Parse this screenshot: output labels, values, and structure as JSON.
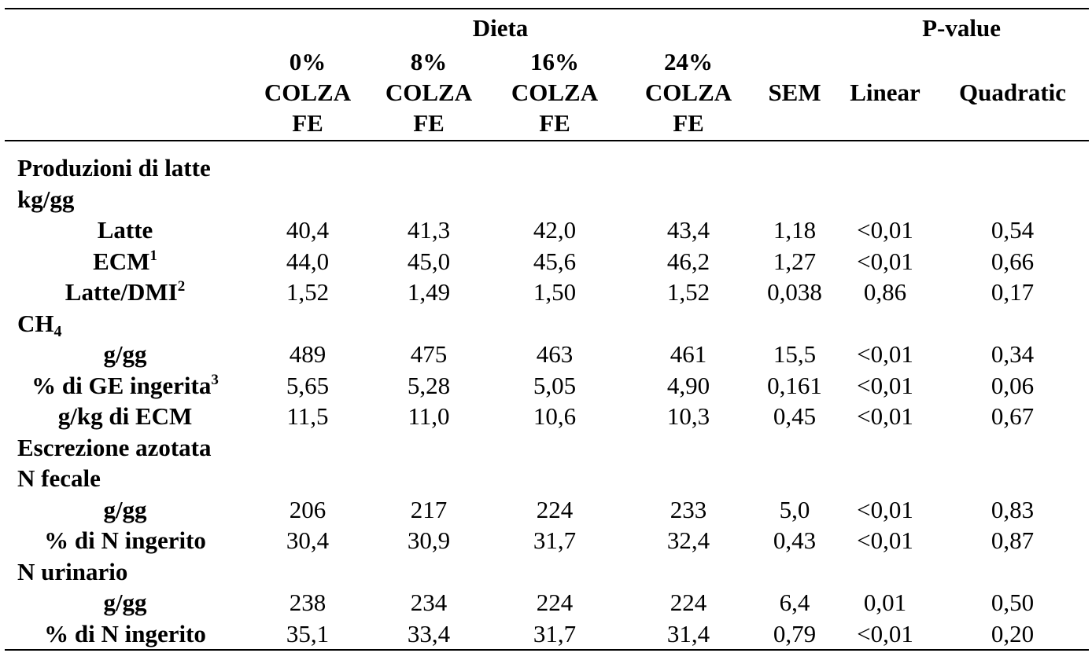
{
  "header": {
    "group_diet": "Dieta",
    "group_pvalue": "P-value",
    "diets": [
      {
        "pct": "0%",
        "name": "COLZA",
        "type": "FE"
      },
      {
        "pct": "8%",
        "name": "COLZA",
        "type": "FE"
      },
      {
        "pct": "16%",
        "name": "COLZA",
        "type": "FE"
      },
      {
        "pct": "24%",
        "name": "COLZA",
        "type": "FE"
      }
    ],
    "sem": "SEM",
    "linear": "Linear",
    "quadratic": "Quadratic"
  },
  "sections": {
    "milk_title": "Produzioni di latte",
    "milk_unit": "kg/gg",
    "ch4_base": "CH",
    "ch4_sub": "4",
    "nitrogen_title": "Escrezione azotata",
    "fecal_title": "N fecale",
    "urinary_title": "N urinario"
  },
  "rows": {
    "latte": {
      "label": "Latte",
      "sup": "",
      "values": [
        "40,4",
        "41,3",
        "42,0",
        "43,4",
        "1,18",
        "<0,01",
        "0,54"
      ]
    },
    "ecm": {
      "label": "ECM",
      "sup": "1",
      "values": [
        "44,0",
        "45,0",
        "45,6",
        "46,2",
        "1,27",
        "<0,01",
        "0,66"
      ]
    },
    "latte_dmi": {
      "label": "Latte/DMI",
      "sup": "2",
      "values": [
        "1,52",
        "1,49",
        "1,50",
        "1,52",
        "0,038",
        "0,86",
        "0,17"
      ]
    },
    "ch4_ggg": {
      "label": "g/gg",
      "sup": "",
      "values": [
        "489",
        "475",
        "463",
        "461",
        "15,5",
        "<0,01",
        "0,34"
      ]
    },
    "ch4_ge": {
      "label": "% di GE ingerita",
      "sup": "3",
      "values": [
        "5,65",
        "5,28",
        "5,05",
        "4,90",
        "0,161",
        "<0,01",
        "0,06"
      ]
    },
    "ch4_kg_ecm": {
      "label": "g/kg di ECM",
      "sup": "",
      "values": [
        "11,5",
        "11,0",
        "10,6",
        "10,3",
        "0,45",
        "<0,01",
        "0,67"
      ]
    },
    "fecal_ggg": {
      "label": "g/gg",
      "sup": "",
      "values": [
        "206",
        "217",
        "224",
        "233",
        "5,0",
        "<0,01",
        "0,83"
      ]
    },
    "fecal_pct": {
      "label": "% di N ingerito",
      "sup": "",
      "values": [
        "30,4",
        "30,9",
        "31,7",
        "32,4",
        "0,43",
        "<0,01",
        "0,87"
      ]
    },
    "urinary_ggg": {
      "label": "g/gg",
      "sup": "",
      "values": [
        "238",
        "234",
        "224",
        "224",
        "6,4",
        "0,01",
        "0,50"
      ]
    },
    "urinary_pct": {
      "label": "% di N ingerito",
      "sup": "",
      "values": [
        "35,1",
        "33,4",
        "31,7",
        "31,4",
        "0,79",
        "<0,01",
        "0,20"
      ]
    }
  }
}
